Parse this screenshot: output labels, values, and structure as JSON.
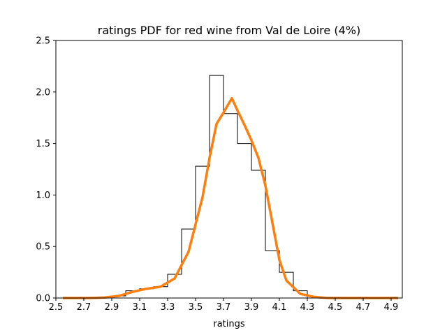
{
  "chart_data": {
    "type": "histogram",
    "title": "ratings PDF for red wine from Val de Loire (4%)",
    "xlabel": "ratings",
    "ylabel": "",
    "xlim": [
      2.5,
      4.98
    ],
    "ylim": [
      0,
      2.5
    ],
    "xticks": [
      "2.5",
      "2.7",
      "2.9",
      "3.1",
      "3.3",
      "3.5",
      "3.7",
      "3.9",
      "4.1",
      "4.3",
      "4.5",
      "4.7",
      "4.9"
    ],
    "yticks": [
      "0.0",
      "0.5",
      "1.0",
      "1.5",
      "2.0",
      "2.5"
    ],
    "grid": false,
    "histogram": {
      "edges": [
        2.9,
        3.0,
        3.1,
        3.2,
        3.3,
        3.4,
        3.5,
        3.6,
        3.7,
        3.8,
        3.9,
        4.0,
        4.1,
        4.2,
        4.3
      ],
      "densities": [
        0.02,
        0.07,
        0.09,
        0.11,
        0.23,
        0.67,
        1.28,
        2.16,
        1.79,
        1.5,
        1.24,
        0.46,
        0.25,
        0.07
      ],
      "color": "#000000"
    },
    "kde": {
      "color": "#ff7f0e",
      "x": [
        2.55,
        2.65,
        2.75,
        2.85,
        2.95,
        3.05,
        3.15,
        3.25,
        3.35,
        3.45,
        3.55,
        3.6,
        3.65,
        3.7,
        3.76,
        3.8,
        3.85,
        3.9,
        3.95,
        4.0,
        4.05,
        4.1,
        4.15,
        4.25,
        4.35,
        4.45,
        4.55,
        4.65,
        4.75,
        4.85,
        4.95
      ],
      "y": [
        0.0,
        0.0,
        0.0,
        0.005,
        0.02,
        0.06,
        0.09,
        0.11,
        0.19,
        0.45,
        0.98,
        1.36,
        1.69,
        1.8,
        1.94,
        1.82,
        1.68,
        1.53,
        1.36,
        1.09,
        0.73,
        0.37,
        0.17,
        0.04,
        0.01,
        0.0,
        0.0,
        0.0,
        0.0,
        0.0,
        0.0
      ]
    }
  }
}
